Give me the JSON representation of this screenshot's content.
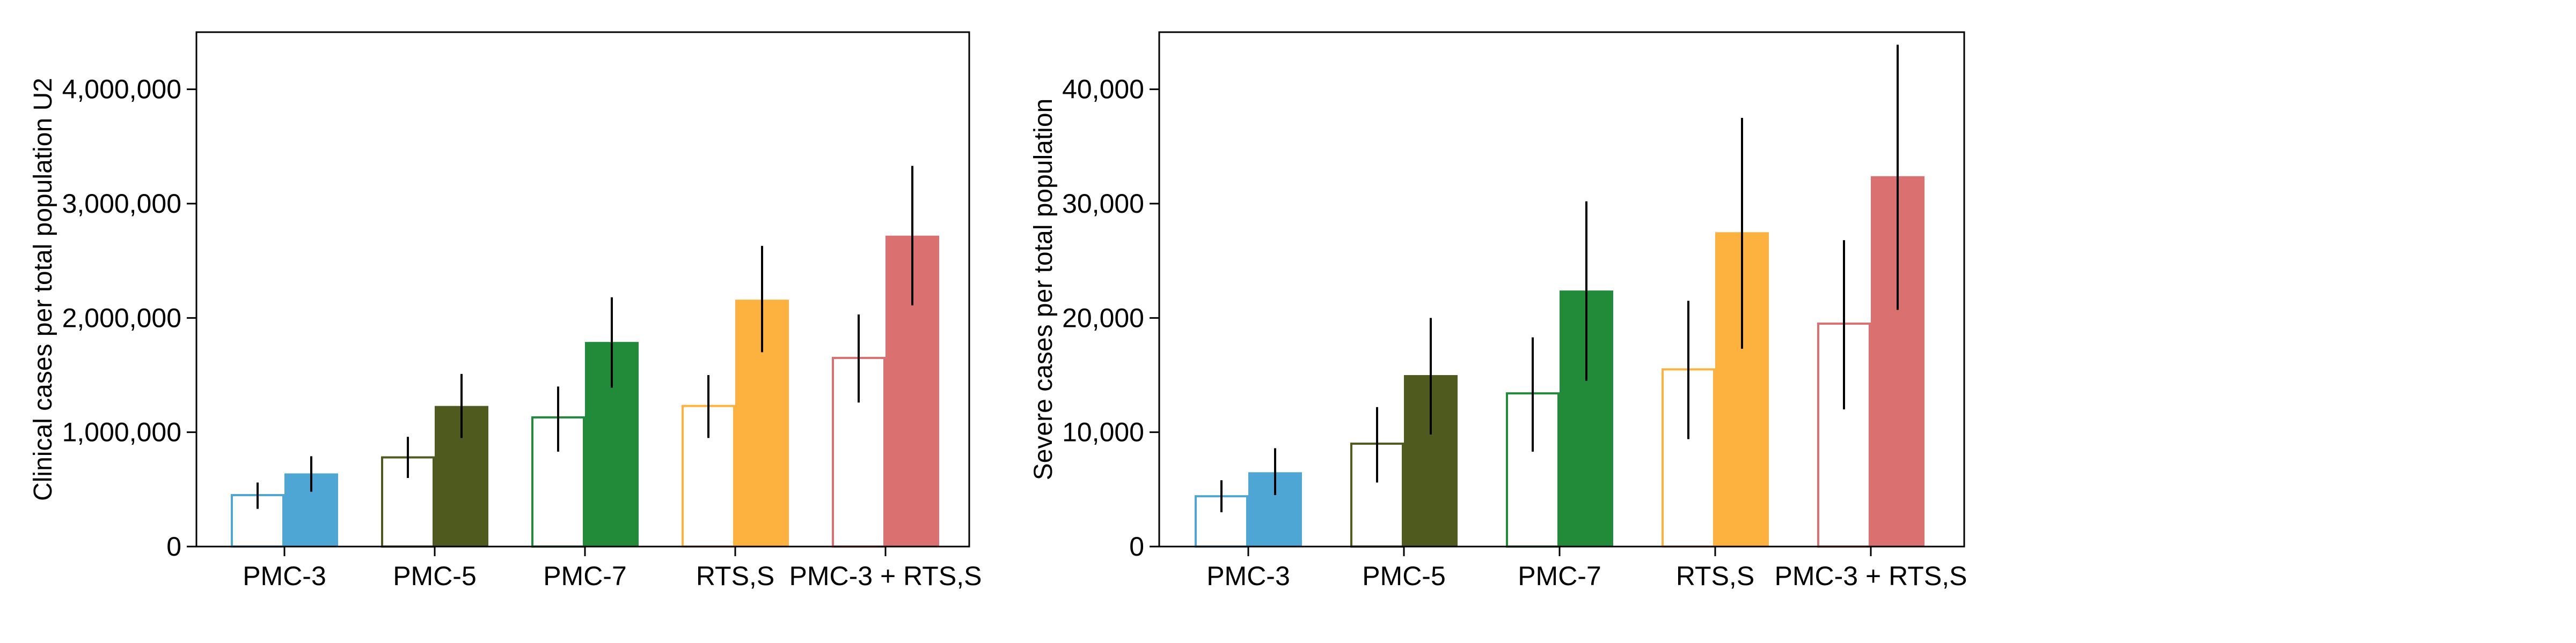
{
  "chart_data": [
    {
      "type": "bar",
      "title": "",
      "xlabel": "",
      "ylabel": "Clinical cases per total population U2",
      "ylim": [
        0,
        4500000
      ],
      "yticks": [
        0,
        1000000,
        2000000,
        3000000,
        4000000
      ],
      "ytick_labels": [
        "0",
        "1,000,000",
        "2,000,000",
        "3,000,000",
        "4,000,000"
      ],
      "grid": false,
      "categories": [
        "PMC-3",
        "PMC-5",
        "PMC-7",
        "RTS,S",
        "PMC-3 + RTS,S"
      ],
      "colors": [
        "#4da6d3",
        "#4f5a1e",
        "#228b3a",
        "#fdb240",
        "#db7070"
      ],
      "series": [
        {
          "style": "outline",
          "values": [
            450000,
            780000,
            1130000,
            1230000,
            1650000
          ],
          "lower": [
            330000,
            600000,
            830000,
            950000,
            1260000
          ],
          "upper": [
            560000,
            960000,
            1400000,
            1500000,
            2030000
          ]
        },
        {
          "style": "filled",
          "values": [
            640000,
            1230000,
            1790000,
            2160000,
            2720000
          ],
          "lower": [
            480000,
            950000,
            1390000,
            1700000,
            2110000
          ],
          "upper": [
            790000,
            1510000,
            2180000,
            2630000,
            3330000
          ]
        }
      ]
    },
    {
      "type": "bar",
      "title": "",
      "xlabel": "",
      "ylabel": "Severe cases per total population",
      "ylim": [
        0,
        45000
      ],
      "yticks": [
        0,
        10000,
        20000,
        30000,
        40000
      ],
      "ytick_labels": [
        "0",
        "10,000",
        "20,000",
        "30,000",
        "40,000"
      ],
      "grid": false,
      "categories": [
        "PMC-3",
        "PMC-5",
        "PMC-7",
        "RTS,S",
        "PMC-3 + RTS,S"
      ],
      "colors": [
        "#4da6d3",
        "#4f5a1e",
        "#228b3a",
        "#fdb240",
        "#db7070"
      ],
      "series": [
        {
          "style": "outline",
          "values": [
            4400,
            9000,
            13400,
            15500,
            19500
          ],
          "lower": [
            3000,
            5600,
            8300,
            9400,
            12000
          ],
          "upper": [
            5800,
            12200,
            18300,
            21500,
            26800
          ]
        },
        {
          "style": "filled",
          "values": [
            6500,
            15000,
            22400,
            27500,
            32400
          ],
          "lower": [
            4500,
            9800,
            14500,
            17300,
            20700
          ],
          "upper": [
            8600,
            20000,
            30200,
            37500,
            43900
          ]
        }
      ]
    }
  ]
}
